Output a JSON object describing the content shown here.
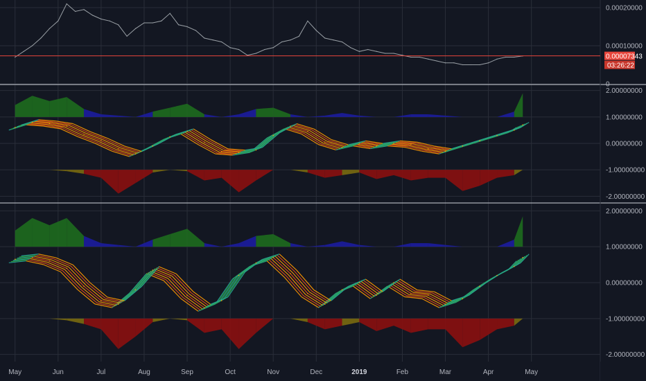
{
  "chart_data": [
    {
      "type": "line",
      "panel": "price",
      "ylim": [
        0,
        0.00022
      ],
      "y_ticks": [
        {
          "value": 0.0002,
          "label": "0.00020000"
        },
        {
          "value": 0.0001,
          "label": "0.00010000"
        },
        {
          "value": 0.0,
          "label": "0"
        }
      ],
      "current_price": {
        "value": 7.343e-05,
        "label": "0.00007343",
        "countdown": "03:26:22"
      },
      "series": [
        {
          "color": "#9aa0a6",
          "x": [
            0,
            0.2,
            0.4,
            0.6,
            0.8,
            1.0,
            1.2,
            1.4,
            1.6,
            1.8,
            2.0,
            2.2,
            2.4,
            2.6,
            2.8,
            3.0,
            3.2,
            3.4,
            3.6,
            3.8,
            4.0,
            4.2,
            4.4,
            4.6,
            4.8,
            5.0,
            5.2,
            5.4,
            5.6,
            5.8,
            6.0,
            6.2,
            6.4,
            6.6,
            6.8,
            7.0,
            7.2,
            7.4,
            7.6,
            7.8,
            8.0,
            8.2,
            8.4,
            8.6,
            8.8,
            9.0,
            9.2,
            9.4,
            9.6,
            9.8,
            10.0,
            10.2,
            10.4,
            10.6,
            10.8,
            11.0,
            11.2,
            11.4,
            11.6,
            11.8
          ],
          "values": [
            7e-05,
            8.5e-05,
            0.0001,
            0.00012,
            0.000145,
            0.000165,
            0.00021,
            0.00019,
            0.000195,
            0.00018,
            0.00017,
            0.000165,
            0.000155,
            0.000125,
            0.000145,
            0.00016,
            0.00016,
            0.000165,
            0.000185,
            0.000155,
            0.00015,
            0.00014,
            0.00012,
            0.000115,
            0.00011,
            9.5e-05,
            9e-05,
            7.5e-05,
            8e-05,
            9e-05,
            9.5e-05,
            0.00011,
            0.000115,
            0.000125,
            0.000165,
            0.00014,
            0.00012,
            0.000115,
            0.00011,
            9.5e-05,
            8.5e-05,
            9e-05,
            8.5e-05,
            8e-05,
            8e-05,
            7.5e-05,
            7e-05,
            7e-05,
            6.5e-05,
            6e-05,
            5.5e-05,
            5.5e-05,
            5e-05,
            5e-05,
            5e-05,
            5.5e-05,
            6.5e-05,
            7e-05,
            7e-05,
            7.3e-05
          ]
        }
      ]
    },
    {
      "type": "area",
      "panel": "oscillator-1",
      "ylim": [
        -2.2,
        2.2
      ],
      "y_ticks": [
        {
          "value": 2,
          "label": "2.00000000"
        },
        {
          "value": 1,
          "label": "1.00000000"
        },
        {
          "value": 0,
          "label": "0.00000000"
        },
        {
          "value": -1,
          "label": "-1.00000000"
        },
        {
          "value": -2,
          "label": "-2.00000000"
        }
      ],
      "upper_histogram": {
        "baseline": 1,
        "x": [
          0,
          0.4,
          0.8,
          1.2,
          1.6,
          2.0,
          2.4,
          2.8,
          3.2,
          3.6,
          4.0,
          4.4,
          4.8,
          5.2,
          5.6,
          6.0,
          6.4,
          6.8,
          7.2,
          7.6,
          8.0,
          8.4,
          8.8,
          9.2,
          9.6,
          10.0,
          10.4,
          10.8,
          11.2,
          11.6,
          11.8
        ],
        "values": [
          1.45,
          1.8,
          1.6,
          1.75,
          1.3,
          1.1,
          1.05,
          1.0,
          1.2,
          1.35,
          1.5,
          1.1,
          1.0,
          1.1,
          1.3,
          1.35,
          1.1,
          1.0,
          1.05,
          1.15,
          1.05,
          1.0,
          1.0,
          1.1,
          1.1,
          1.05,
          1.0,
          1.0,
          1.0,
          1.2,
          1.9
        ]
      },
      "ribbon": {
        "x": [
          0,
          0.4,
          0.8,
          1.2,
          1.6,
          2.0,
          2.4,
          2.8,
          3.2,
          3.6,
          4.0,
          4.4,
          4.8,
          5.2,
          5.6,
          6.0,
          6.4,
          6.8,
          7.2,
          7.6,
          8.0,
          8.4,
          8.8,
          9.2,
          9.6,
          10.0,
          10.4,
          10.8,
          11.2,
          11.6,
          11.8
        ],
        "values": [
          0.6,
          0.8,
          0.75,
          0.65,
          0.35,
          0.1,
          -0.2,
          -0.4,
          -0.1,
          0.25,
          0.45,
          0.05,
          -0.3,
          -0.35,
          -0.25,
          0.3,
          0.65,
          0.45,
          0.05,
          -0.15,
          0.0,
          -0.1,
          0.0,
          -0.05,
          -0.2,
          -0.3,
          -0.1,
          0.1,
          0.3,
          0.5,
          0.7
        ]
      },
      "lower_histogram": {
        "baseline": -1,
        "x": [
          0,
          0.4,
          0.8,
          1.2,
          1.6,
          2.0,
          2.4,
          2.8,
          3.2,
          3.6,
          4.0,
          4.4,
          4.8,
          5.2,
          5.6,
          6.0,
          6.4,
          6.8,
          7.2,
          7.6,
          8.0,
          8.4,
          8.8,
          9.2,
          9.6,
          10.0,
          10.4,
          10.8,
          11.2,
          11.6,
          11.8
        ],
        "values": [
          -1.0,
          -1.0,
          -1.0,
          -1.05,
          -1.15,
          -1.3,
          -1.9,
          -1.5,
          -1.1,
          -1.0,
          -1.05,
          -1.4,
          -1.3,
          -1.85,
          -1.4,
          -1.0,
          -1.0,
          -1.1,
          -1.3,
          -1.2,
          -1.1,
          -1.35,
          -1.2,
          -1.4,
          -1.3,
          -1.3,
          -1.8,
          -1.6,
          -1.3,
          -1.2,
          -1.0
        ]
      }
    },
    {
      "type": "area",
      "panel": "oscillator-2",
      "ylim": [
        -2.2,
        2.2
      ],
      "y_ticks": [
        {
          "value": 2,
          "label": "2.00000000"
        },
        {
          "value": 1,
          "label": "1.00000000"
        },
        {
          "value": 0,
          "label": "0.00000000"
        },
        {
          "value": -1,
          "label": "-1.00000000"
        },
        {
          "value": -2,
          "label": "-2.00000000"
        }
      ],
      "upper_histogram": {
        "baseline": 1,
        "x": [
          0,
          0.4,
          0.8,
          1.2,
          1.6,
          2.0,
          2.4,
          2.8,
          3.2,
          3.6,
          4.0,
          4.4,
          4.8,
          5.2,
          5.6,
          6.0,
          6.4,
          6.8,
          7.2,
          7.6,
          8.0,
          8.4,
          8.8,
          9.2,
          9.6,
          10.0,
          10.4,
          10.8,
          11.2,
          11.6,
          11.8
        ],
        "values": [
          1.45,
          1.8,
          1.6,
          1.8,
          1.3,
          1.1,
          1.05,
          1.0,
          1.2,
          1.35,
          1.5,
          1.1,
          1.0,
          1.1,
          1.3,
          1.35,
          1.1,
          1.0,
          1.05,
          1.15,
          1.05,
          1.0,
          1.0,
          1.1,
          1.1,
          1.05,
          1.0,
          1.0,
          1.0,
          1.2,
          1.85
        ]
      },
      "ribbon": {
        "x": [
          0,
          0.4,
          0.8,
          1.2,
          1.6,
          2.0,
          2.4,
          2.8,
          3.2,
          3.6,
          4.0,
          4.4,
          4.8,
          5.2,
          5.6,
          6.0,
          6.4,
          6.8,
          7.2,
          7.6,
          8.0,
          8.4,
          8.8,
          9.2,
          9.6,
          10.0,
          10.4,
          10.8,
          11.2,
          11.6,
          11.8
        ],
        "values": [
          0.65,
          0.7,
          0.6,
          0.4,
          -0.1,
          -0.5,
          -0.6,
          -0.2,
          0.35,
          0.15,
          -0.35,
          -0.7,
          -0.5,
          0.2,
          0.55,
          0.7,
          0.25,
          -0.3,
          -0.6,
          -0.2,
          0.0,
          -0.35,
          0.0,
          -0.3,
          -0.35,
          -0.6,
          -0.45,
          -0.1,
          0.2,
          0.45,
          0.7
        ]
      },
      "lower_histogram": {
        "baseline": -1,
        "x": [
          0,
          0.4,
          0.8,
          1.2,
          1.6,
          2.0,
          2.4,
          2.8,
          3.2,
          3.6,
          4.0,
          4.4,
          4.8,
          5.2,
          5.6,
          6.0,
          6.4,
          6.8,
          7.2,
          7.6,
          8.0,
          8.4,
          8.8,
          9.2,
          9.6,
          10.0,
          10.4,
          10.8,
          11.2,
          11.6,
          11.8
        ],
        "values": [
          -1.0,
          -1.0,
          -1.0,
          -1.05,
          -1.15,
          -1.3,
          -1.85,
          -1.5,
          -1.1,
          -1.0,
          -1.05,
          -1.4,
          -1.3,
          -1.85,
          -1.4,
          -1.0,
          -1.0,
          -1.1,
          -1.3,
          -1.2,
          -1.1,
          -1.35,
          -1.2,
          -1.4,
          -1.3,
          -1.3,
          -1.8,
          -1.6,
          -1.3,
          -1.2,
          -1.0
        ]
      }
    }
  ],
  "x_axis": {
    "range": [
      -0.35,
      13.6
    ],
    "ticks": [
      {
        "value": 0,
        "label": "May",
        "bold": false
      },
      {
        "value": 1,
        "label": "Jun",
        "bold": false
      },
      {
        "value": 2,
        "label": "Jul",
        "bold": false
      },
      {
        "value": 3,
        "label": "Aug",
        "bold": false
      },
      {
        "value": 4,
        "label": "Sep",
        "bold": false
      },
      {
        "value": 5,
        "label": "Oct",
        "bold": false
      },
      {
        "value": 6,
        "label": "Nov",
        "bold": false
      },
      {
        "value": 7,
        "label": "Dec",
        "bold": false
      },
      {
        "value": 8,
        "label": "2019",
        "bold": true
      },
      {
        "value": 9,
        "label": "Feb",
        "bold": false
      },
      {
        "value": 10,
        "label": "Mar",
        "bold": false
      },
      {
        "value": 11,
        "label": "Apr",
        "bold": false
      },
      {
        "value": 12,
        "label": "May",
        "bold": false
      }
    ]
  },
  "colors": {
    "background": "#131722",
    "grid": "#2a2e39",
    "price_line": "#9aa0a6",
    "price_marker": "#e8463c",
    "upper_green": "#1e6b1e",
    "upper_blue": "#1c1c9e",
    "lower_red": "#8b1010",
    "lower_olive": "#7a6a10",
    "ribbon_red": "#e64a19",
    "ribbon_orange": "#ff9800",
    "ribbon_green": "#2e9e3a",
    "ribbon_teal": "#26a69a"
  }
}
